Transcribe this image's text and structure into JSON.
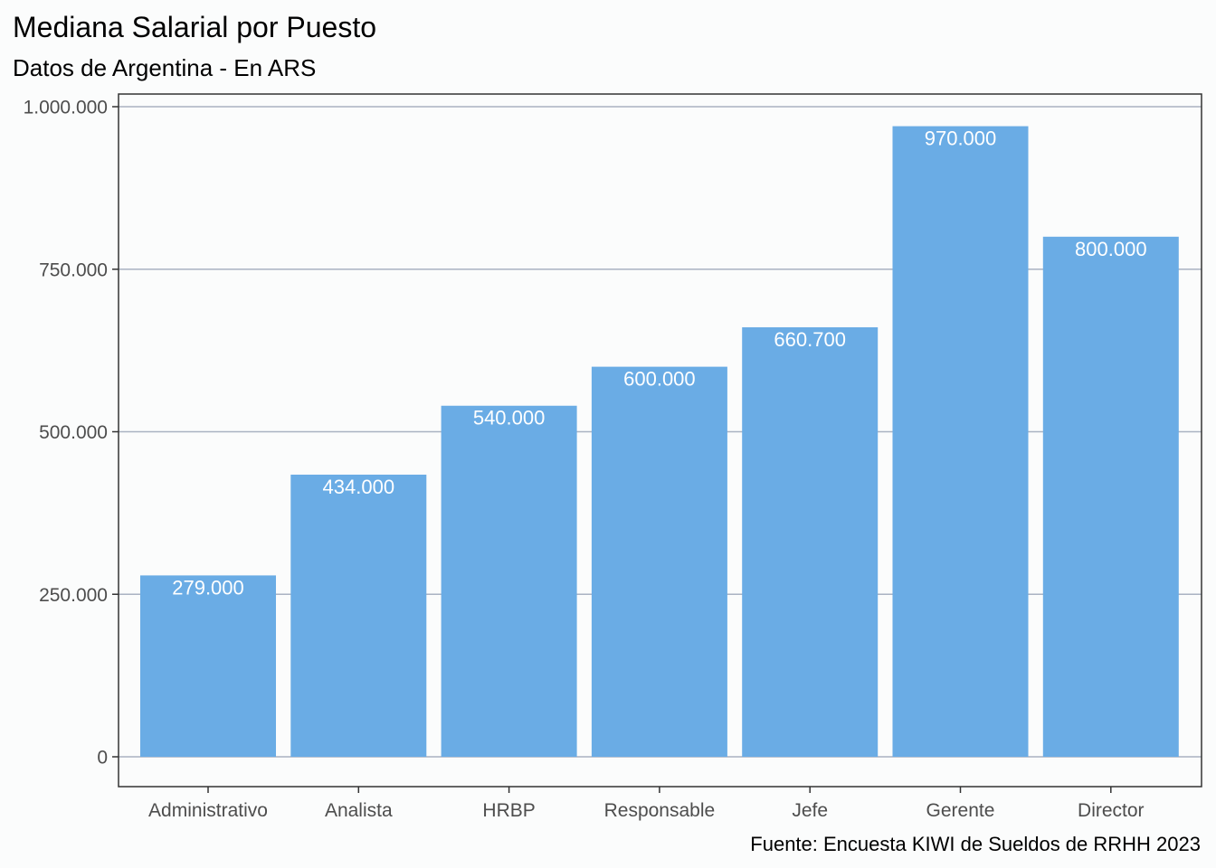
{
  "chart_data": {
    "type": "bar",
    "title": "Mediana Salarial por Puesto",
    "subtitle": "Datos de Argentina - En ARS",
    "caption": "Fuente: Encuesta KIWI de Sueldos de RRHH 2023",
    "xlabel": "",
    "ylabel": "",
    "categories": [
      "Administrativo",
      "Analista",
      "HRBP",
      "Responsable",
      "Jefe",
      "Gerente",
      "Director"
    ],
    "values": [
      279000,
      434000,
      540000,
      600000,
      660700,
      970000,
      800000
    ],
    "value_labels": [
      "279.000",
      "434.000",
      "540.000",
      "600.000",
      "660.700",
      "970.000",
      "800.000"
    ],
    "ylim": [
      0,
      1000000
    ],
    "yticks": [
      0,
      250000,
      500000,
      750000,
      1000000
    ],
    "ytick_labels": [
      "0",
      "250.000",
      "500.000",
      "750.000",
      "1.000.000"
    ],
    "grid": "horizontal",
    "legend": "none",
    "colors": {
      "bar": "#6aace5",
      "grid": "#aab2c2",
      "panel_border": "#333333",
      "background": "#fbfcfc"
    }
  }
}
